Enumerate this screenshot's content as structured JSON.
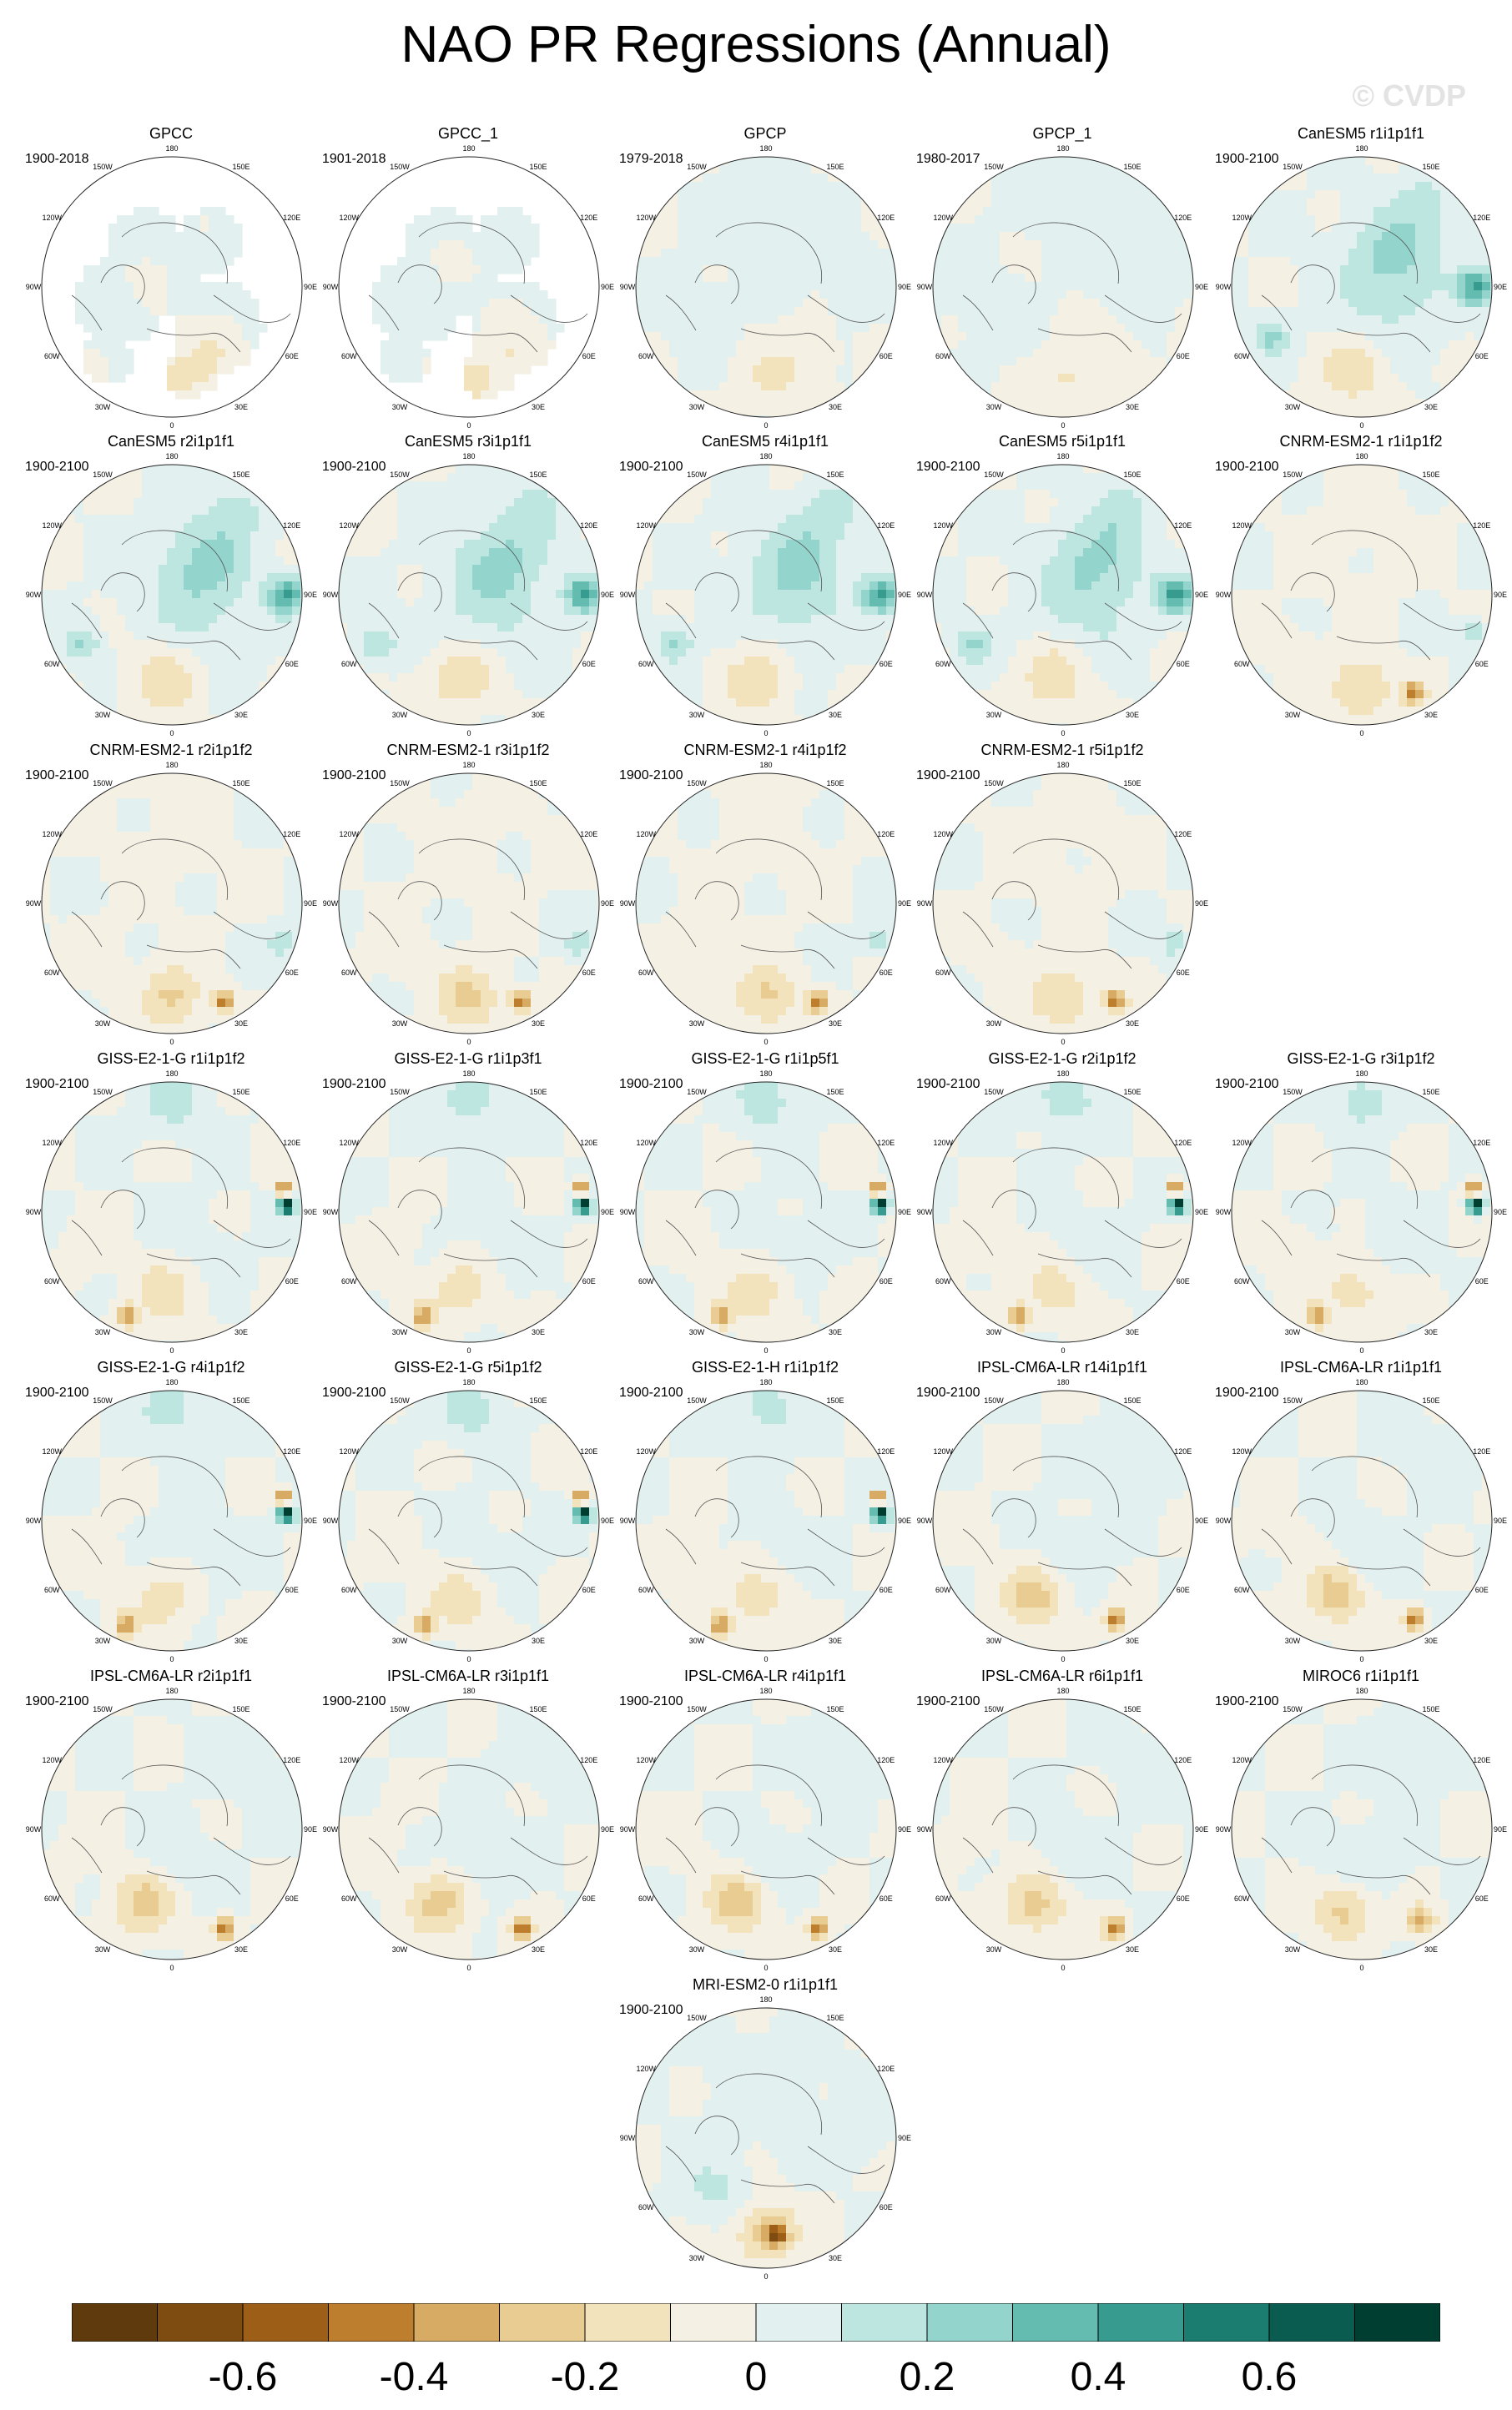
{
  "title": "NAO PR Regressions (Annual)",
  "watermark": "© CVDP",
  "lon_labels": [
    "180",
    "150E",
    "120E",
    "90E",
    "60E",
    "30E",
    "0",
    "30W",
    "60W",
    "90W",
    "120W",
    "150W"
  ],
  "colors": {
    "missing": "#ffffff",
    "coast": "#555555",
    "border": "#222222"
  },
  "colorbar": {
    "colors": [
      "#5f3a0c",
      "#7e4b10",
      "#9d5f18",
      "#bd7f2e",
      "#d8ab64",
      "#e8cc92",
      "#f3e3bc",
      "#f5f0e4",
      "#e2f1f0",
      "#bde6e1",
      "#93d4cc",
      "#64bbb0",
      "#379b90",
      "#1b7c70",
      "#0b5c50",
      "#013e32"
    ],
    "levels": [
      -0.7,
      -0.6,
      -0.5,
      -0.4,
      -0.3,
      -0.2,
      -0.1,
      0,
      0.1,
      0.2,
      0.3,
      0.4,
      0.5,
      0.6,
      0.7
    ],
    "tick_labels": [
      "-0.6",
      "-0.4",
      "-0.2",
      "0",
      "0.2",
      "0.4",
      "0.6"
    ],
    "tick_values": [
      -0.6,
      -0.4,
      -0.2,
      0,
      0.2,
      0.4,
      0.6
    ]
  },
  "panels": [
    {
      "label": "GPCC",
      "period": "1900-2018",
      "row": 0,
      "col": 0,
      "kind": "obs_land"
    },
    {
      "label": "GPCC_1",
      "period": "1901-2018",
      "row": 0,
      "col": 1,
      "kind": "obs_land"
    },
    {
      "label": "GPCP",
      "period": "1979-2018",
      "row": 0,
      "col": 2,
      "kind": "obs"
    },
    {
      "label": "GPCP_1",
      "period": "1980-2017",
      "row": 0,
      "col": 3,
      "kind": "obs"
    },
    {
      "label": "CanESM5 r1i1p1f1",
      "period": "1900-2100",
      "row": 0,
      "col": 4,
      "kind": "canesm"
    },
    {
      "label": "CanESM5 r2i1p1f1",
      "period": "1900-2100",
      "row": 1,
      "col": 0,
      "kind": "canesm"
    },
    {
      "label": "CanESM5 r3i1p1f1",
      "period": "1900-2100",
      "row": 1,
      "col": 1,
      "kind": "canesm"
    },
    {
      "label": "CanESM5 r4i1p1f1",
      "period": "1900-2100",
      "row": 1,
      "col": 2,
      "kind": "canesm"
    },
    {
      "label": "CanESM5 r5i1p1f1",
      "period": "1900-2100",
      "row": 1,
      "col": 3,
      "kind": "canesm"
    },
    {
      "label": "CNRM-ESM2-1 r1i1p1f2",
      "period": "1900-2100",
      "row": 1,
      "col": 4,
      "kind": "cnrm"
    },
    {
      "label": "CNRM-ESM2-1 r2i1p1f2",
      "period": "1900-2100",
      "row": 2,
      "col": 0,
      "kind": "cnrm"
    },
    {
      "label": "CNRM-ESM2-1 r3i1p1f2",
      "period": "1900-2100",
      "row": 2,
      "col": 1,
      "kind": "cnrm"
    },
    {
      "label": "CNRM-ESM2-1 r4i1p1f2",
      "period": "1900-2100",
      "row": 2,
      "col": 2,
      "kind": "cnrm"
    },
    {
      "label": "CNRM-ESM2-1 r5i1p1f2",
      "period": "1900-2100",
      "row": 2,
      "col": 3,
      "kind": "cnrm"
    },
    {
      "label": "GISS-E2-1-G r1i1p1f2",
      "period": "1900-2100",
      "row": 3,
      "col": 0,
      "kind": "giss"
    },
    {
      "label": "GISS-E2-1-G r1i1p3f1",
      "period": "1900-2100",
      "row": 3,
      "col": 1,
      "kind": "giss"
    },
    {
      "label": "GISS-E2-1-G r1i1p5f1",
      "period": "1900-2100",
      "row": 3,
      "col": 2,
      "kind": "giss"
    },
    {
      "label": "GISS-E2-1-G r2i1p1f2",
      "period": "1900-2100",
      "row": 3,
      "col": 3,
      "kind": "giss"
    },
    {
      "label": "GISS-E2-1-G r3i1p1f2",
      "period": "1900-2100",
      "row": 3,
      "col": 4,
      "kind": "giss"
    },
    {
      "label": "GISS-E2-1-G r4i1p1f2",
      "period": "1900-2100",
      "row": 4,
      "col": 0,
      "kind": "giss"
    },
    {
      "label": "GISS-E2-1-G r5i1p1f2",
      "period": "1900-2100",
      "row": 4,
      "col": 1,
      "kind": "giss"
    },
    {
      "label": "GISS-E2-1-H r1i1p1f2",
      "period": "1900-2100",
      "row": 4,
      "col": 2,
      "kind": "giss"
    },
    {
      "label": "IPSL-CM6A-LR r14i1p1f1",
      "period": "1900-2100",
      "row": 4,
      "col": 3,
      "kind": "ipsl"
    },
    {
      "label": "IPSL-CM6A-LR r1i1p1f1",
      "period": "1900-2100",
      "row": 4,
      "col": 4,
      "kind": "ipsl"
    },
    {
      "label": "IPSL-CM6A-LR r2i1p1f1",
      "period": "1900-2100",
      "row": 5,
      "col": 0,
      "kind": "ipsl"
    },
    {
      "label": "IPSL-CM6A-LR r3i1p1f1",
      "period": "1900-2100",
      "row": 5,
      "col": 1,
      "kind": "ipsl"
    },
    {
      "label": "IPSL-CM6A-LR r4i1p1f1",
      "period": "1900-2100",
      "row": 5,
      "col": 2,
      "kind": "ipsl"
    },
    {
      "label": "IPSL-CM6A-LR r6i1p1f1",
      "period": "1900-2100",
      "row": 5,
      "col": 3,
      "kind": "ipsl"
    },
    {
      "label": "MIROC6 r1i1p1f1",
      "period": "1900-2100",
      "row": 5,
      "col": 4,
      "kind": "miroc"
    },
    {
      "label": "MRI-ESM2-0 r1i1p1f1",
      "period": "1900-2100",
      "row": 6,
      "col": 2,
      "kind": "mri"
    }
  ]
}
